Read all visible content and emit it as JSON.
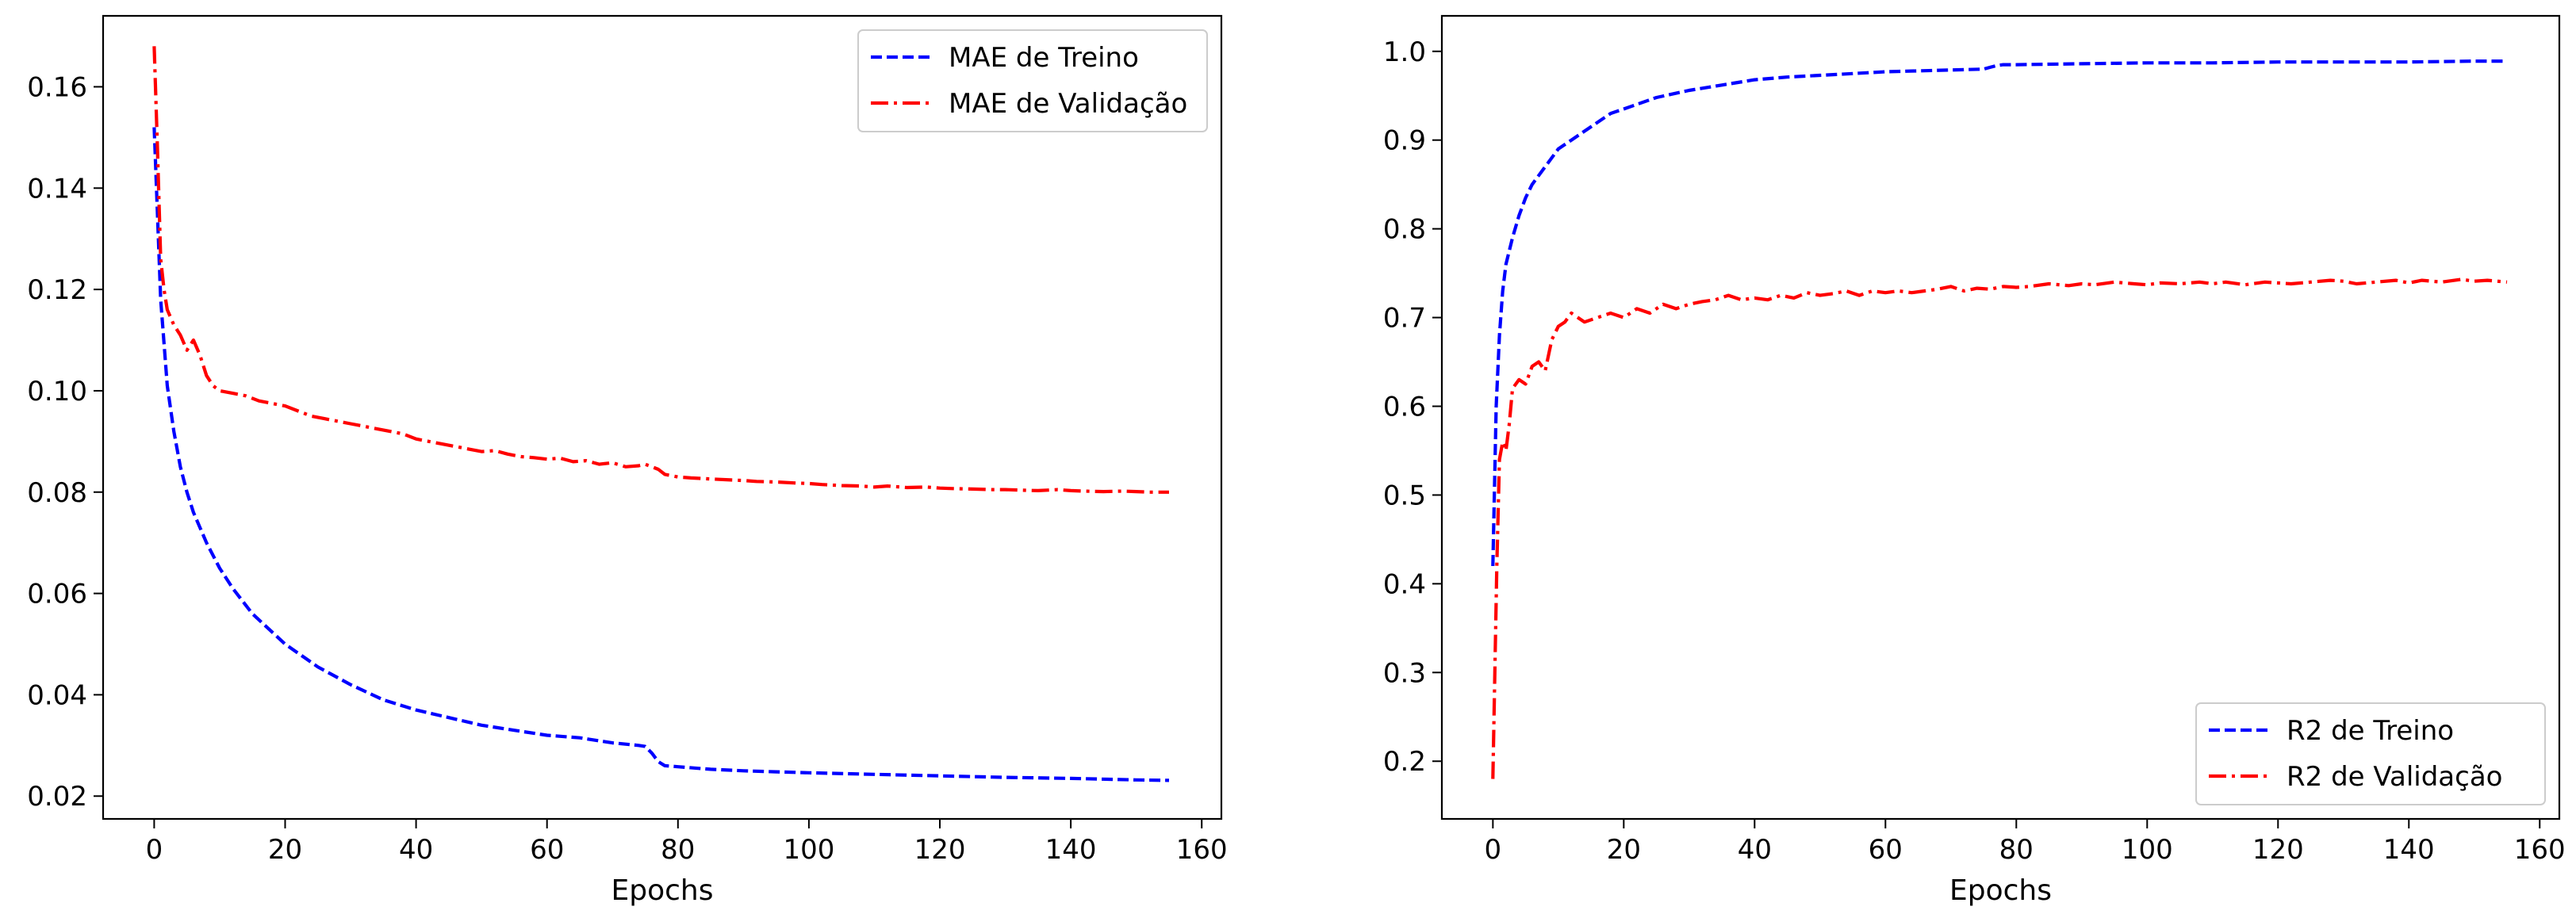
{
  "chart_data": [
    {
      "type": "line",
      "title": "",
      "xlabel": "Epochs",
      "ylabel": "",
      "xlim": [
        -7.8,
        163
      ],
      "ylim": [
        0.0155,
        0.174
      ],
      "xticks": [
        0,
        20,
        40,
        60,
        80,
        100,
        120,
        140,
        160
      ],
      "yticks": [
        0.02,
        0.04,
        0.06,
        0.08,
        0.1,
        0.12,
        0.14,
        0.16
      ],
      "ytick_labels": [
        "0.02",
        "0.04",
        "0.06",
        "0.08",
        "0.10",
        "0.12",
        "0.14",
        "0.16"
      ],
      "grid": false,
      "legend_position": "upper right",
      "series": [
        {
          "name": "MAE de Treino",
          "color": "#0000ff",
          "linestyle": "dashed",
          "x": [
            0,
            1,
            2,
            3,
            4,
            5,
            6,
            8,
            10,
            12,
            15,
            20,
            25,
            30,
            35,
            40,
            45,
            50,
            55,
            60,
            65,
            70,
            74,
            75,
            76,
            77,
            78,
            80,
            85,
            90,
            95,
            100,
            110,
            120,
            130,
            140,
            150,
            155
          ],
          "values": [
            0.152,
            0.118,
            0.101,
            0.092,
            0.085,
            0.08,
            0.076,
            0.07,
            0.065,
            0.061,
            0.056,
            0.05,
            0.0455,
            0.042,
            0.039,
            0.037,
            0.0355,
            0.034,
            0.033,
            0.032,
            0.0315,
            0.0305,
            0.03,
            0.0298,
            0.0285,
            0.0268,
            0.026,
            0.0258,
            0.0253,
            0.025,
            0.0248,
            0.0246,
            0.0243,
            0.024,
            0.0237,
            0.0235,
            0.0232,
            0.0231
          ]
        },
        {
          "name": "MAE de Validação",
          "color": "#ff0000",
          "linestyle": "dashdot",
          "x": [
            0,
            0.5,
            1,
            1.5,
            2,
            3,
            4,
            5,
            6,
            7,
            8,
            9,
            10,
            12,
            14,
            16,
            18,
            20,
            22,
            24,
            26,
            28,
            30,
            32,
            34,
            36,
            38,
            40,
            42,
            44,
            46,
            48,
            50,
            52,
            54,
            56,
            58,
            60,
            62,
            64,
            66,
            68,
            70,
            72,
            74,
            75,
            76,
            77,
            78,
            80,
            82,
            85,
            88,
            90,
            92,
            95,
            98,
            100,
            102,
            105,
            108,
            110,
            112,
            115,
            118,
            120,
            122,
            125,
            128,
            130,
            132,
            135,
            138,
            140,
            142,
            145,
            148,
            150,
            152,
            155
          ],
          "values": [
            0.168,
            0.148,
            0.126,
            0.12,
            0.116,
            0.113,
            0.111,
            0.108,
            0.11,
            0.107,
            0.103,
            0.101,
            0.1,
            0.0995,
            0.099,
            0.098,
            0.0975,
            0.097,
            0.096,
            0.095,
            0.0945,
            0.094,
            0.0935,
            0.093,
            0.0925,
            0.092,
            0.0915,
            0.0905,
            0.09,
            0.0895,
            0.089,
            0.0885,
            0.088,
            0.0882,
            0.0875,
            0.087,
            0.0868,
            0.0865,
            0.0867,
            0.086,
            0.0862,
            0.0855,
            0.0858,
            0.085,
            0.0852,
            0.0855,
            0.085,
            0.0845,
            0.0835,
            0.083,
            0.0828,
            0.0826,
            0.0824,
            0.0823,
            0.0821,
            0.082,
            0.0818,
            0.0817,
            0.0815,
            0.0813,
            0.0812,
            0.081,
            0.0812,
            0.0809,
            0.081,
            0.0808,
            0.0807,
            0.0806,
            0.0805,
            0.0805,
            0.0804,
            0.0803,
            0.0805,
            0.0803,
            0.0802,
            0.0801,
            0.0802,
            0.0801,
            0.08,
            0.08
          ]
        }
      ]
    },
    {
      "type": "line",
      "title": "",
      "xlabel": "Epochs",
      "ylabel": "",
      "xlim": [
        -7.8,
        163
      ],
      "ylim": [
        0.135,
        1.04
      ],
      "xticks": [
        0,
        20,
        40,
        60,
        80,
        100,
        120,
        140,
        160
      ],
      "yticks": [
        0.2,
        0.3,
        0.4,
        0.5,
        0.6,
        0.7,
        0.8,
        0.9,
        1.0
      ],
      "ytick_labels": [
        "0.2",
        "0.3",
        "0.4",
        "0.5",
        "0.6",
        "0.7",
        "0.8",
        "0.9",
        "1.0"
      ],
      "grid": false,
      "legend_position": "lower right",
      "series": [
        {
          "name": "R2 de Treino",
          "color": "#0000ff",
          "linestyle": "dashed",
          "x": [
            0,
            0.5,
            1,
            1.5,
            2,
            3,
            4,
            5,
            6,
            8,
            10,
            12,
            15,
            18,
            20,
            25,
            30,
            35,
            40,
            45,
            50,
            55,
            60,
            65,
            70,
            75,
            76,
            77,
            78,
            80,
            90,
            100,
            110,
            120,
            130,
            140,
            150,
            155
          ],
          "values": [
            0.42,
            0.6,
            0.68,
            0.73,
            0.76,
            0.79,
            0.815,
            0.835,
            0.85,
            0.87,
            0.89,
            0.9,
            0.915,
            0.93,
            0.935,
            0.948,
            0.956,
            0.962,
            0.968,
            0.971,
            0.973,
            0.975,
            0.977,
            0.978,
            0.979,
            0.98,
            0.982,
            0.984,
            0.985,
            0.985,
            0.986,
            0.987,
            0.987,
            0.988,
            0.988,
            0.988,
            0.989,
            0.989
          ]
        },
        {
          "name": "R2 de Validação",
          "color": "#ff0000",
          "linestyle": "dashdot",
          "x": [
            0,
            0.3,
            0.6,
            1,
            1.5,
            2,
            2.5,
            3,
            4,
            5,
            6,
            7,
            8,
            9,
            10,
            11,
            12,
            14,
            16,
            18,
            20,
            22,
            24,
            26,
            28,
            30,
            32,
            34,
            36,
            38,
            40,
            42,
            44,
            46,
            48,
            50,
            52,
            54,
            56,
            58,
            60,
            62,
            64,
            66,
            68,
            70,
            72,
            74,
            76,
            78,
            80,
            82,
            85,
            88,
            90,
            92,
            95,
            98,
            100,
            102,
            105,
            108,
            110,
            112,
            115,
            118,
            120,
            122,
            125,
            128,
            130,
            132,
            135,
            138,
            140,
            142,
            145,
            148,
            150,
            152,
            155
          ],
          "values": [
            0.18,
            0.3,
            0.42,
            0.54,
            0.56,
            0.55,
            0.58,
            0.62,
            0.63,
            0.625,
            0.645,
            0.65,
            0.64,
            0.675,
            0.69,
            0.695,
            0.705,
            0.695,
            0.7,
            0.705,
            0.7,
            0.71,
            0.705,
            0.715,
            0.71,
            0.715,
            0.718,
            0.72,
            0.725,
            0.72,
            0.722,
            0.72,
            0.725,
            0.722,
            0.728,
            0.725,
            0.727,
            0.73,
            0.725,
            0.73,
            0.728,
            0.73,
            0.728,
            0.73,
            0.732,
            0.735,
            0.73,
            0.733,
            0.732,
            0.735,
            0.734,
            0.735,
            0.738,
            0.736,
            0.738,
            0.737,
            0.74,
            0.738,
            0.737,
            0.739,
            0.738,
            0.74,
            0.738,
            0.74,
            0.737,
            0.74,
            0.739,
            0.738,
            0.74,
            0.742,
            0.741,
            0.738,
            0.74,
            0.742,
            0.739,
            0.742,
            0.74,
            0.743,
            0.741,
            0.742,
            0.74
          ]
        }
      ]
    }
  ]
}
